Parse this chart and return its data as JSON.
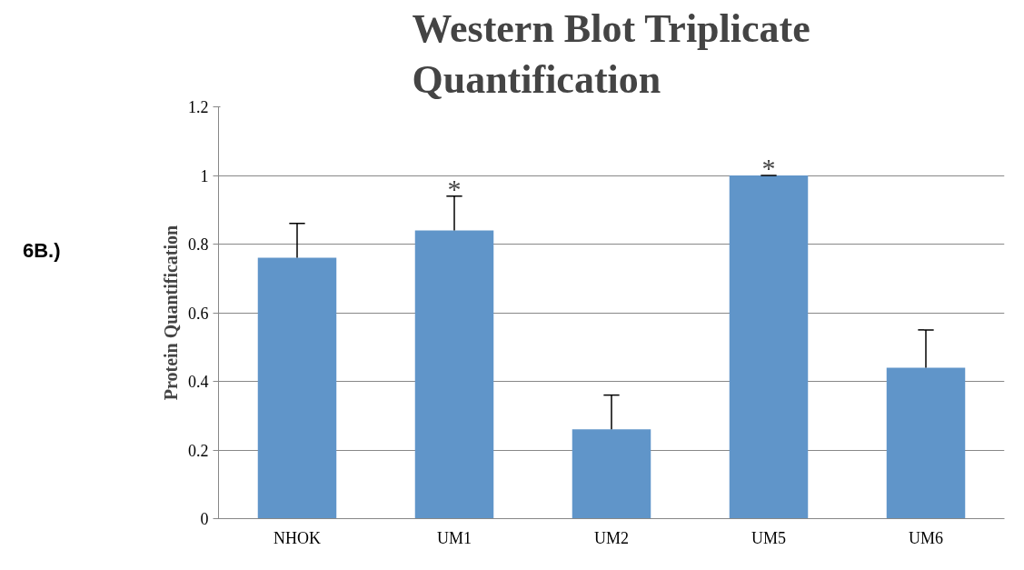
{
  "chart_data": {
    "type": "bar",
    "title": "Western Blot Triplicate\nQuantification",
    "ylabel": "Protein Quantification",
    "categories": [
      "NHOK",
      "UM1",
      "UM2",
      "UM5",
      "UM6"
    ],
    "values": [
      0.76,
      0.84,
      0.26,
      1.0,
      0.44
    ],
    "errors": [
      [
        0.76,
        0.86
      ],
      [
        0.84,
        0.94
      ],
      [
        0.26,
        0.36
      ],
      [
        1.0,
        1.0
      ],
      [
        0.44,
        0.55
      ]
    ],
    "color": "#6095c9",
    "ylim": [
      0,
      1.2
    ],
    "yticks": [
      0,
      0.2,
      0.4,
      0.6,
      0.8,
      1,
      1.2
    ],
    "grid": "y",
    "annotations": [
      "6B.)",
      {
        "text": "*",
        "x": "UM1",
        "y": 0.94
      },
      {
        "text": "*",
        "x": "UM5",
        "y": 1.0
      }
    ]
  }
}
